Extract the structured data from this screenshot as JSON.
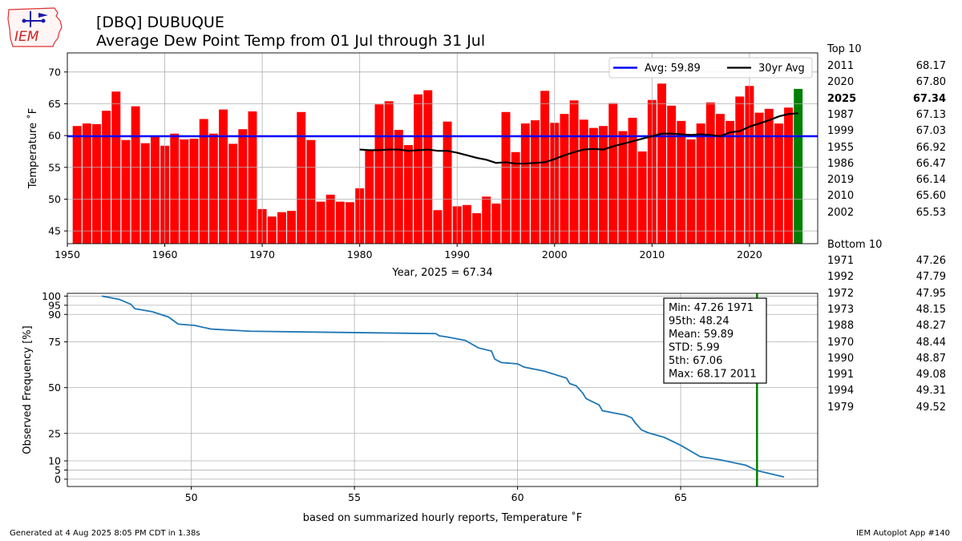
{
  "logo": {
    "text": "IEM",
    "icon": "iem-iowa-logo-icon"
  },
  "title": {
    "line1": "[DBQ] DUBUQUE",
    "line2": "Average Dew Point Temp from 01 Jul through 31 Jul"
  },
  "top10": {
    "heading": "Top 10",
    "rows": [
      {
        "year": "2011",
        "value": "68.17"
      },
      {
        "year": "2020",
        "value": "67.80"
      },
      {
        "year": "2025",
        "value": "67.34",
        "bold": true
      },
      {
        "year": "1987",
        "value": "67.13"
      },
      {
        "year": "1999",
        "value": "67.03"
      },
      {
        "year": "1955",
        "value": "66.92"
      },
      {
        "year": "1986",
        "value": "66.47"
      },
      {
        "year": "2019",
        "value": "66.14"
      },
      {
        "year": "2010",
        "value": "65.60"
      },
      {
        "year": "2002",
        "value": "65.53"
      }
    ]
  },
  "bottom10": {
    "heading": "Bottom 10",
    "rows": [
      {
        "year": "1971",
        "value": "47.26"
      },
      {
        "year": "1992",
        "value": "47.79"
      },
      {
        "year": "1972",
        "value": "47.95"
      },
      {
        "year": "1973",
        "value": "48.15"
      },
      {
        "year": "1988",
        "value": "48.27"
      },
      {
        "year": "1970",
        "value": "48.44"
      },
      {
        "year": "1990",
        "value": "48.87"
      },
      {
        "year": "1991",
        "value": "49.08"
      },
      {
        "year": "1994",
        "value": "49.31"
      },
      {
        "year": "1979",
        "value": "49.52"
      }
    ]
  },
  "footer": {
    "left": "Generated at 4 Aug 2025 8:05 PM CDT in 1.38s",
    "right": "IEM Autoplot App #140"
  },
  "chart_data": [
    {
      "type": "bar",
      "xlabel": "Year, 2025 = 67.34",
      "ylabel": "Temperature ˚F",
      "xlim": [
        1950,
        2027
      ],
      "ylim": [
        43,
        73
      ],
      "xticks": [
        1950,
        1960,
        1970,
        1980,
        1990,
        2000,
        2010,
        2020
      ],
      "yticks": [
        45,
        50,
        55,
        60,
        65,
        70
      ],
      "grid": true,
      "bar_color": "#ff0000",
      "highlight_color": "#008000",
      "highlight_year": 2025,
      "years": [
        1951,
        1952,
        1953,
        1954,
        1955,
        1956,
        1957,
        1958,
        1959,
        1960,
        1961,
        1962,
        1963,
        1964,
        1965,
        1966,
        1967,
        1968,
        1969,
        1970,
        1971,
        1972,
        1973,
        1974,
        1975,
        1976,
        1977,
        1978,
        1979,
        1980,
        1981,
        1982,
        1983,
        1984,
        1985,
        1986,
        1987,
        1988,
        1989,
        1990,
        1991,
        1992,
        1993,
        1994,
        1995,
        1996,
        1997,
        1998,
        1999,
        2000,
        2001,
        2002,
        2003,
        2004,
        2005,
        2006,
        2007,
        2008,
        2009,
        2010,
        2011,
        2012,
        2013,
        2014,
        2015,
        2016,
        2017,
        2018,
        2019,
        2020,
        2021,
        2022,
        2023,
        2024,
        2025
      ],
      "values": [
        61.5,
        61.9,
        61.8,
        63.9,
        66.92,
        59.3,
        64.6,
        58.8,
        59.8,
        58.4,
        60.3,
        59.4,
        59.5,
        62.6,
        60.3,
        64.1,
        58.7,
        61.0,
        63.8,
        48.44,
        47.26,
        47.95,
        48.15,
        63.7,
        59.3,
        49.6,
        50.7,
        49.6,
        49.52,
        51.7,
        57.7,
        64.9,
        65.4,
        60.9,
        58.5,
        66.47,
        67.13,
        48.27,
        62.2,
        48.87,
        49.08,
        47.79,
        50.4,
        49.31,
        63.7,
        57.4,
        61.9,
        62.4,
        67.03,
        62.0,
        63.4,
        65.53,
        62.5,
        61.2,
        61.5,
        65.1,
        60.7,
        62.8,
        57.5,
        65.6,
        68.17,
        64.7,
        62.3,
        59.4,
        61.9,
        65.2,
        63.4,
        62.3,
        66.14,
        67.8,
        63.6,
        64.2,
        61.9,
        64.4,
        67.34
      ],
      "series": [
        {
          "name": "Avg: 59.89",
          "kind": "hline",
          "value": 59.89,
          "color": "#0000ff"
        },
        {
          "name": "30yr Avg",
          "kind": "line",
          "color": "#000000",
          "x": [
            1980,
            1981,
            1982,
            1983,
            1984,
            1985,
            1986,
            1987,
            1988,
            1989,
            1990,
            1991,
            1992,
            1993,
            1994,
            1995,
            1996,
            1997,
            1998,
            1999,
            2000,
            2001,
            2002,
            2003,
            2004,
            2005,
            2006,
            2007,
            2008,
            2009,
            2010,
            2011,
            2012,
            2013,
            2014,
            2015,
            2016,
            2017,
            2018,
            2019,
            2020,
            2021,
            2022,
            2023,
            2024,
            2025
          ],
          "y": [
            57.8,
            57.7,
            57.7,
            57.8,
            57.8,
            57.6,
            57.7,
            57.8,
            57.6,
            57.6,
            57.3,
            56.9,
            56.5,
            56.2,
            55.7,
            55.8,
            55.6,
            55.6,
            55.7,
            55.8,
            56.3,
            56.9,
            57.4,
            57.8,
            57.9,
            57.8,
            58.3,
            58.7,
            59.1,
            59.5,
            59.9,
            60.3,
            60.3,
            60.2,
            60.1,
            60.2,
            60.1,
            59.9,
            60.5,
            60.7,
            61.4,
            61.9,
            62.4,
            63.0,
            63.4,
            63.5
          ]
        }
      ],
      "legend": "top-right"
    },
    {
      "type": "line",
      "xlabel": "based on summarized hourly reports, Temperature ˚F",
      "ylabel": "Observed Frequency [%]",
      "xlim": [
        46.2,
        69.2
      ],
      "ylim": [
        -4,
        101.5
      ],
      "xticks": [
        50,
        55,
        60,
        65
      ],
      "yticks": [
        0,
        5,
        10,
        25,
        50,
        75,
        90,
        95,
        100
      ],
      "grid": true,
      "color": "#1f77b4",
      "x": [
        47.26,
        47.79,
        48.15,
        48.27,
        48.8,
        49.3,
        49.6,
        50.1,
        50.6,
        51.8,
        53.5,
        57.5,
        57.6,
        57.8,
        58.4,
        58.8,
        59.2,
        59.3,
        59.5,
        60.0,
        60.2,
        60.8,
        61.5,
        61.6,
        61.8,
        62.0,
        62.1,
        62.5,
        62.6,
        63.0,
        63.3,
        63.5,
        63.6,
        63.8,
        64.0,
        64.5,
        65.0,
        65.6,
        66.2,
        67.0,
        67.34,
        68.17
      ],
      "y": [
        100,
        98.2,
        95.5,
        93.1,
        91.5,
        88.6,
        84.7,
        84.0,
        82.0,
        80.8,
        80.4,
        79.5,
        78.3,
        77.8,
        75.8,
        71.7,
        70.0,
        65.6,
        63.7,
        63.0,
        61.2,
        59.1,
        55.2,
        52.2,
        51.0,
        47.0,
        44.0,
        40.5,
        37.4,
        36.0,
        35.0,
        33.5,
        30.9,
        26.9,
        25.4,
        22.8,
        18.5,
        12.3,
        10.6,
        7.6,
        4.7,
        1.2
      ],
      "annotation": [
        "Min: 47.26 1971",
        "95th: 48.24",
        "Mean: 59.89",
        "STD: 5.99",
        "5th: 67.06",
        "Max: 68.17 2011"
      ],
      "vline": {
        "value": 67.34,
        "color": "#008000"
      }
    }
  ]
}
